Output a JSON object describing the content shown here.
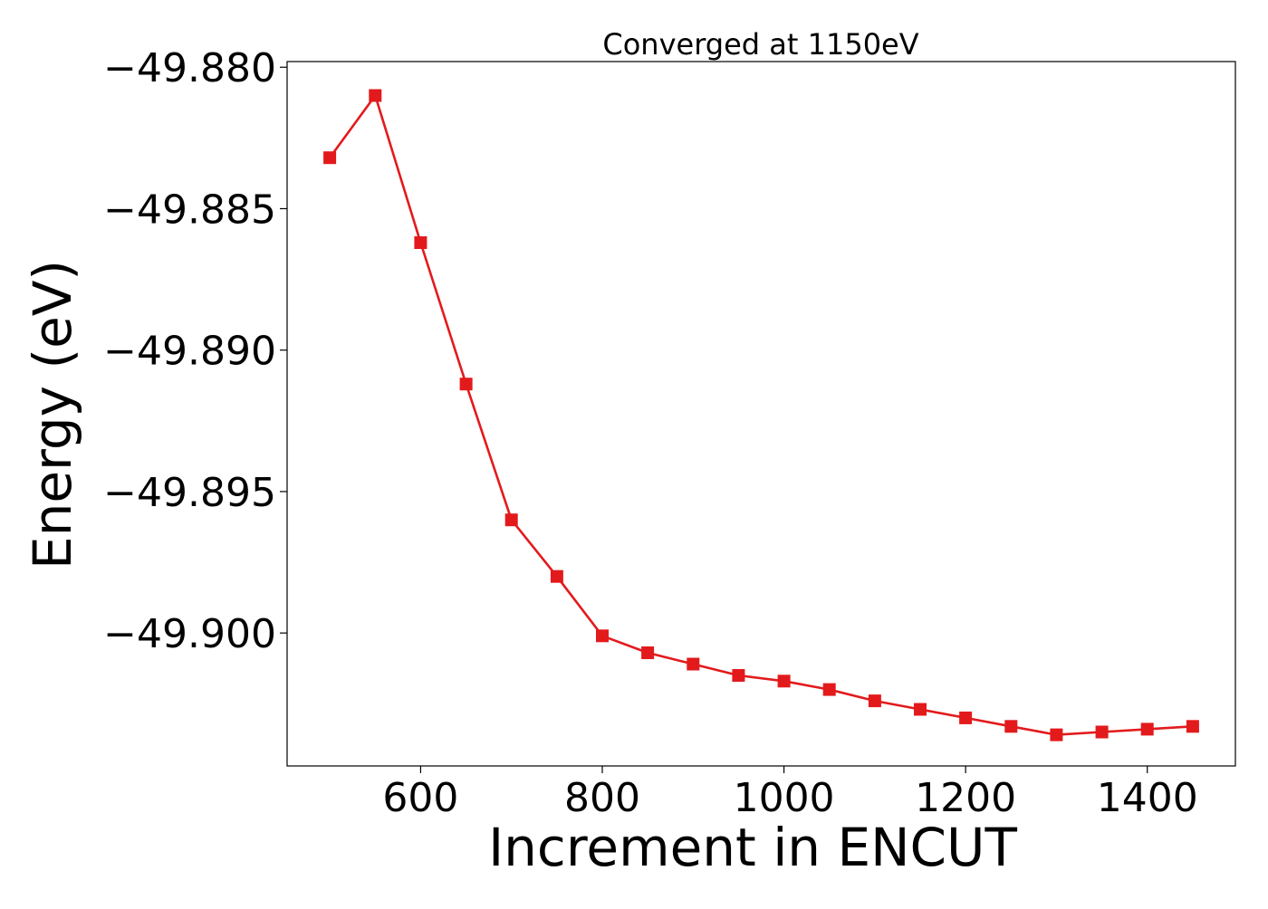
{
  "chart_data": {
    "type": "line",
    "title": "Converged at 1150eV",
    "xlabel": "Increment in ENCUT",
    "ylabel": "Energy (eV)",
    "xlim": [
      453,
      1497
    ],
    "ylim": [
      -49.9047,
      -49.8798
    ],
    "x_ticks": [
      600,
      800,
      1000,
      1200,
      1400
    ],
    "x_tick_labels": [
      "600",
      "800",
      "1000",
      "1200",
      "1400"
    ],
    "y_ticks": [
      -49.88,
      -49.885,
      -49.89,
      -49.895,
      -49.9
    ],
    "y_tick_labels": [
      "−49.880",
      "−49.885",
      "−49.890",
      "−49.895",
      "−49.900"
    ],
    "grid": false,
    "legend": "none",
    "series": [
      {
        "color": "#e31a1c",
        "marker": "square",
        "x": [
          500,
          550,
          600,
          650,
          700,
          750,
          800,
          850,
          900,
          950,
          1000,
          1050,
          1100,
          1150,
          1200,
          1250,
          1300,
          1350,
          1400,
          1450
        ],
        "y": [
          -49.8832,
          -49.881,
          -49.8862,
          -49.8912,
          -49.896,
          -49.898,
          -49.9001,
          -49.9007,
          -49.9011,
          -49.9015,
          -49.9017,
          -49.902,
          -49.9024,
          -49.9027,
          -49.903,
          -49.9033,
          -49.9036,
          -49.9035,
          -49.9034,
          -49.9033
        ]
      }
    ]
  }
}
